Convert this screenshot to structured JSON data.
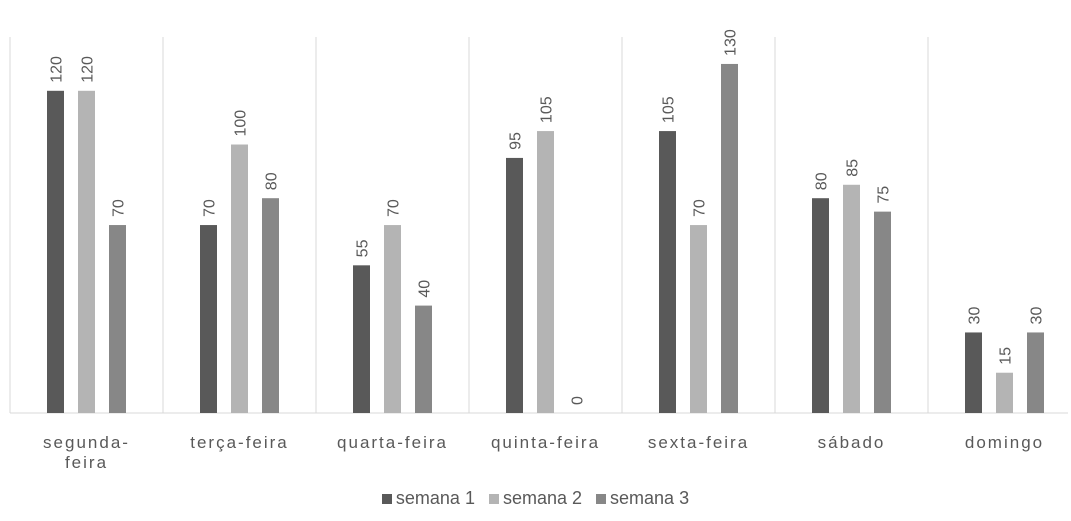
{
  "chart_data": {
    "type": "bar",
    "categories": [
      "segunda-feira",
      "terça-feira",
      "quarta-feira",
      "quinta-feira",
      "sexta-feira",
      "sábado",
      "domingo"
    ],
    "category_lines": [
      [
        "segunda-",
        "feira"
      ],
      [
        "terça-feira"
      ],
      [
        "quarta-feira"
      ],
      [
        "quinta-feira"
      ],
      [
        "sexta-feira"
      ],
      [
        "sábado"
      ],
      [
        "domingo"
      ]
    ],
    "series": [
      {
        "name": "semana 1",
        "color": "#595959",
        "values": [
          120,
          70,
          55,
          95,
          105,
          80,
          30
        ]
      },
      {
        "name": "semana 2",
        "color": "#b4b4b4",
        "values": [
          120,
          100,
          70,
          105,
          70,
          85,
          15
        ]
      },
      {
        "name": "semana 3",
        "color": "#878787",
        "values": [
          70,
          80,
          40,
          0,
          130,
          75,
          30
        ]
      }
    ],
    "ylim": [
      0,
      140
    ],
    "data_labels": true,
    "data_label_rotation": "vertical",
    "grid": "vertical category separators",
    "legend_position": "bottom"
  }
}
